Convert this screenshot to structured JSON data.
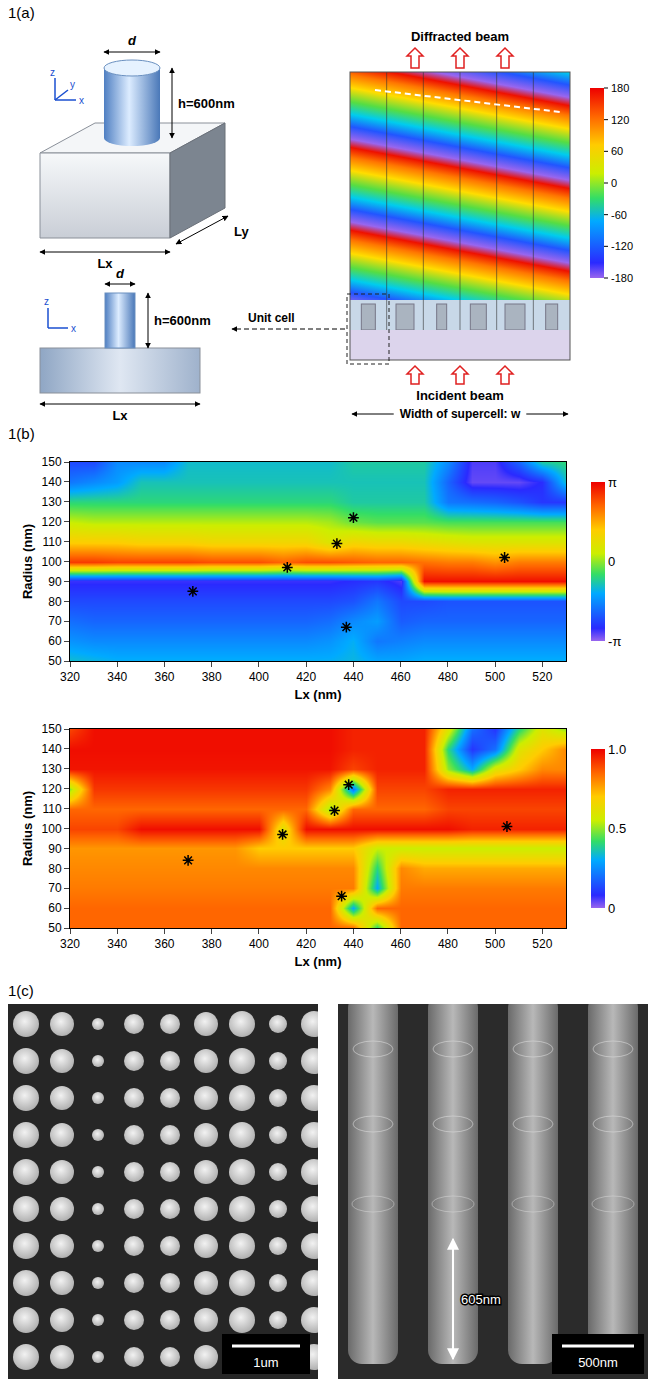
{
  "panel_a": {
    "label": "1(a)",
    "unit_cell_3d": {
      "d": "d",
      "height": "h=600nm",
      "lx": "Lx",
      "ly": "Ly",
      "axes": {
        "x": "x",
        "y": "y",
        "z": "z"
      }
    },
    "side_view": {
      "d": "d",
      "height": "h=600nm",
      "lx": "Lx",
      "axes": {
        "x": "x",
        "z": "z"
      }
    },
    "supercell": {
      "top": "Diffracted beam",
      "bottom": "Incident beam",
      "unit_cell": "Unit cell",
      "width": "Width of supercell: w",
      "colorbar": {
        "range": [
          -180,
          180
        ],
        "ticks": [
          180,
          120,
          60,
          0,
          -60,
          -120,
          -180
        ]
      }
    }
  },
  "panel_b": {
    "label": "1(b)"
  },
  "chart_data": [
    {
      "type": "heatmap",
      "xlabel": "Lx (nm)",
      "ylabel": "Radius (nm)",
      "x": [
        320,
        330,
        340,
        350,
        360,
        370,
        380,
        390,
        400,
        410,
        420,
        430,
        440,
        450,
        460,
        470,
        480,
        490,
        500,
        510,
        520,
        530
      ],
      "y": [
        50,
        60,
        70,
        80,
        90,
        100,
        110,
        120,
        130,
        140,
        150
      ],
      "z": [
        [
          -1.0,
          -1.1,
          -1.2,
          -1.2,
          -1.2,
          -1.2,
          -1.2,
          -1.2,
          -1.2,
          -1.2,
          -1.2,
          -1.2,
          -1.1,
          -1.3,
          -1.3,
          -1.2,
          -1.2,
          -1.2,
          -1.2,
          -1.2,
          -1.2,
          -1.2
        ],
        [
          -1.5,
          -1.6,
          -1.6,
          -1.6,
          -1.6,
          -1.6,
          -1.6,
          -1.6,
          -1.6,
          -1.6,
          -1.6,
          -1.5,
          -1.2,
          -1.8,
          -1.7,
          -1.6,
          -1.6,
          -1.6,
          -1.6,
          -1.6,
          -1.6,
          -1.6
        ],
        [
          -1.9,
          -2.0,
          -2.0,
          -2.0,
          -2.0,
          -2.0,
          -2.0,
          -2.0,
          -2.0,
          -2.0,
          -2.0,
          -1.9,
          -1.6,
          -1.4,
          -2.1,
          -2.0,
          -2.0,
          -2.0,
          -2.0,
          -2.0,
          -2.0,
          -2.0
        ],
        [
          -2.3,
          -2.3,
          -2.3,
          -2.3,
          -2.3,
          -2.3,
          -2.3,
          -2.3,
          -2.3,
          -2.3,
          -2.3,
          -2.3,
          -2.2,
          -1.8,
          -2.3,
          -2.3,
          -2.2,
          -2.2,
          -2.2,
          -2.2,
          -2.2,
          -2.2
        ],
        [
          -2.7,
          -2.7,
          -2.7,
          -2.7,
          -2.7,
          -2.7,
          -2.7,
          -2.7,
          -2.7,
          -2.7,
          -2.7,
          -2.7,
          -2.6,
          -2.5,
          -2.8,
          3.0,
          3.0,
          3.0,
          3.0,
          3.0,
          3.0,
          3.0
        ],
        [
          2.6,
          2.6,
          2.5,
          2.5,
          2.5,
          2.5,
          2.4,
          2.4,
          2.4,
          2.2,
          2.4,
          2.4,
          2.3,
          2.2,
          2.2,
          2.1,
          2.0,
          2.0,
          1.8,
          2.0,
          2.0,
          2.0
        ],
        [
          1.2,
          1.2,
          1.2,
          1.1,
          1.1,
          1.1,
          1.0,
          1.0,
          1.0,
          1.0,
          1.0,
          0.6,
          1.0,
          0.9,
          0.9,
          0.8,
          0.7,
          0.6,
          0.6,
          0.6,
          0.6,
          0.6
        ],
        [
          0.3,
          0.2,
          0.2,
          0.2,
          0.2,
          0.2,
          0.2,
          0.2,
          0.2,
          0.2,
          0.2,
          0.1,
          -0.2,
          -0.3,
          -0.3,
          -0.3,
          -0.4,
          -0.4,
          -0.4,
          -0.4,
          -0.4,
          -0.4
        ],
        [
          -0.6,
          -0.6,
          -0.6,
          -0.6,
          -0.6,
          -0.6,
          -0.6,
          -0.6,
          -0.6,
          -0.6,
          -0.6,
          -0.6,
          -0.8,
          -0.8,
          -0.8,
          -0.8,
          -1.8,
          -1.9,
          -2.0,
          -2.2,
          -2.5,
          -2.5
        ],
        [
          -1.8,
          -1.6,
          -1.4,
          -0.9,
          -0.9,
          -0.9,
          -0.9,
          -0.9,
          -0.9,
          -0.9,
          -0.9,
          -0.9,
          -0.9,
          -0.9,
          -0.9,
          -0.9,
          -2.0,
          -2.9,
          -2.9,
          -2.9,
          -2.6,
          -1.0
        ],
        [
          -2.3,
          -2.3,
          -1.6,
          -1.6,
          -1.6,
          -1.0,
          -1.0,
          -1.0,
          -1.0,
          -1.0,
          -1.0,
          -1.0,
          -0.8,
          -0.8,
          -0.8,
          -0.8,
          -1.6,
          -2.8,
          -2.8,
          -2.0,
          -0.8,
          -0.6
        ]
      ],
      "xlim": [
        320,
        530
      ],
      "ylim": [
        50,
        150
      ],
      "xticks": [
        320,
        340,
        360,
        380,
        400,
        420,
        440,
        460,
        480,
        500,
        520
      ],
      "yticks": [
        50,
        60,
        70,
        80,
        90,
        100,
        110,
        120,
        130,
        140,
        150
      ],
      "colorbar": {
        "range": [
          -3.1416,
          3.1416
        ],
        "ticks": [
          {
            "value": 3.1416,
            "label": "π"
          },
          0,
          {
            "value": -3.1416,
            "label": "-π"
          }
        ]
      },
      "starred_points": {
        "x": [
          372,
          437,
          412,
          433,
          440,
          504
        ],
        "y": [
          85,
          67,
          97,
          109,
          122,
          102
        ]
      },
      "marker": "asterisk",
      "grid": false
    },
    {
      "type": "heatmap",
      "xlabel": "Lx (nm)",
      "ylabel": "Radius (nm)",
      "x": [
        320,
        330,
        340,
        350,
        360,
        370,
        380,
        390,
        400,
        410,
        420,
        430,
        440,
        450,
        460,
        470,
        480,
        490,
        500,
        510,
        520,
        530
      ],
      "y": [
        50,
        60,
        70,
        80,
        90,
        100,
        110,
        120,
        130,
        140,
        150
      ],
      "z": [
        [
          0.85,
          0.85,
          0.85,
          0.85,
          0.85,
          0.85,
          0.85,
          0.85,
          0.85,
          0.85,
          0.85,
          0.85,
          0.85,
          0.4,
          0.85,
          0.85,
          0.85,
          0.85,
          0.85,
          0.85,
          0.85,
          0.85
        ],
        [
          0.85,
          0.85,
          0.85,
          0.85,
          0.85,
          0.85,
          0.85,
          0.85,
          0.85,
          0.85,
          0.85,
          0.85,
          0.3,
          0.85,
          0.85,
          0.85,
          0.85,
          0.85,
          0.85,
          0.85,
          0.85,
          0.85
        ],
        [
          0.82,
          0.82,
          0.82,
          0.82,
          0.82,
          0.82,
          0.82,
          0.82,
          0.82,
          0.82,
          0.82,
          0.82,
          0.82,
          0.3,
          0.82,
          0.82,
          0.82,
          0.82,
          0.82,
          0.82,
          0.82,
          0.82
        ],
        [
          0.8,
          0.8,
          0.8,
          0.8,
          0.8,
          0.8,
          0.8,
          0.8,
          0.8,
          0.8,
          0.8,
          0.8,
          0.8,
          0.4,
          0.8,
          0.75,
          0.75,
          0.75,
          0.75,
          0.75,
          0.75,
          0.75
        ],
        [
          0.78,
          0.78,
          0.78,
          0.78,
          0.78,
          0.78,
          0.78,
          0.78,
          0.7,
          0.7,
          0.7,
          0.7,
          0.7,
          0.55,
          0.55,
          0.55,
          0.55,
          0.55,
          0.55,
          0.55,
          0.55,
          0.55
        ],
        [
          0.9,
          0.9,
          0.9,
          0.98,
          0.98,
          0.98,
          0.98,
          0.98,
          0.98,
          0.6,
          0.98,
          0.98,
          0.98,
          0.98,
          0.98,
          0.98,
          0.98,
          0.95,
          0.95,
          0.95,
          0.95,
          0.95
        ],
        [
          0.85,
          0.85,
          0.85,
          0.85,
          0.85,
          0.85,
          0.85,
          0.85,
          0.85,
          0.85,
          0.85,
          0.5,
          0.85,
          0.85,
          0.85,
          0.85,
          0.9,
          0.9,
          0.9,
          0.9,
          0.9,
          0.9
        ],
        [
          0.5,
          0.92,
          0.92,
          0.92,
          0.92,
          0.92,
          0.92,
          0.92,
          0.92,
          0.92,
          0.92,
          0.8,
          0.2,
          0.9,
          0.9,
          0.9,
          0.95,
          0.95,
          0.95,
          0.95,
          0.95,
          0.95
        ],
        [
          0.97,
          0.97,
          0.97,
          0.97,
          0.97,
          0.97,
          0.97,
          0.97,
          0.97,
          0.97,
          0.97,
          0.97,
          0.9,
          0.95,
          0.95,
          0.95,
          0.5,
          0.3,
          0.6,
          0.7,
          0.8,
          0.8
        ],
        [
          0.98,
          0.98,
          0.98,
          0.98,
          0.98,
          0.98,
          0.98,
          0.98,
          0.98,
          0.98,
          0.98,
          0.98,
          0.95,
          0.95,
          0.95,
          0.95,
          0.4,
          0.1,
          0.2,
          0.6,
          0.7,
          0.8
        ],
        [
          0.9,
          0.98,
          0.98,
          0.98,
          0.98,
          0.98,
          0.98,
          0.98,
          0.98,
          0.98,
          0.98,
          0.98,
          0.95,
          0.95,
          0.95,
          0.95,
          0.6,
          0.2,
          0.1,
          0.4,
          0.6,
          0.5
        ]
      ],
      "xlim": [
        320,
        530
      ],
      "ylim": [
        50,
        150
      ],
      "xticks": [
        320,
        340,
        360,
        380,
        400,
        420,
        440,
        460,
        480,
        500,
        520
      ],
      "yticks": [
        50,
        60,
        70,
        80,
        90,
        100,
        110,
        120,
        130,
        140,
        150
      ],
      "colorbar": {
        "range": [
          0,
          1
        ],
        "ticks": [
          {
            "value": 1,
            "label": "1.0"
          },
          0.5,
          0
        ]
      },
      "starred_points": {
        "x": [
          370,
          435,
          410,
          432,
          438,
          505
        ],
        "y": [
          84,
          66,
          97,
          109,
          122,
          101
        ]
      },
      "marker": "asterisk",
      "grid": false
    }
  ],
  "panel_c": {
    "label": "1(c)",
    "left_scale_bar": "1um",
    "right_scale_bar": "500nm",
    "pillar_height": "605nm"
  }
}
